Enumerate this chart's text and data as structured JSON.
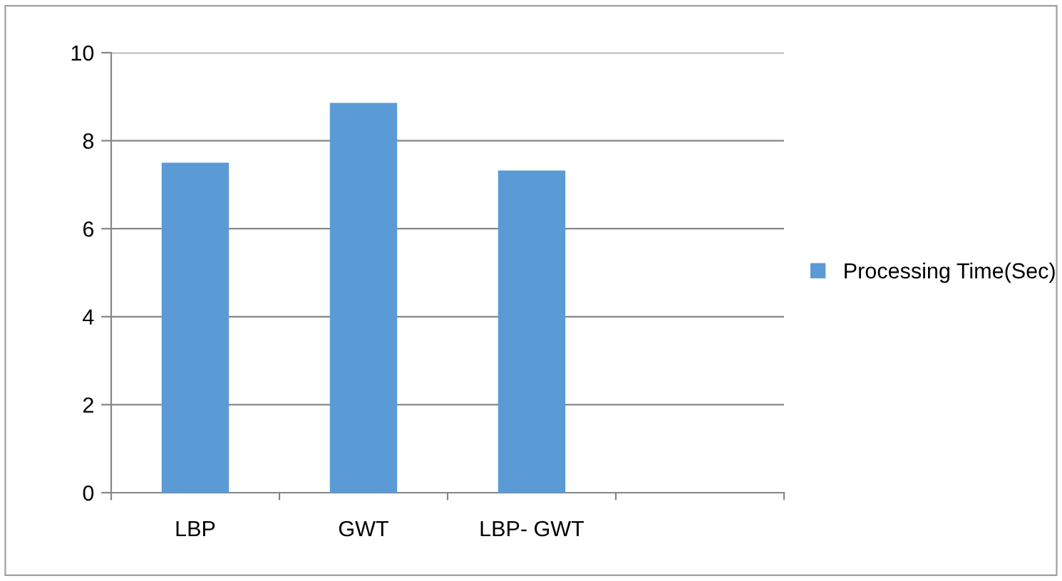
{
  "chart_data": {
    "type": "bar",
    "categories": [
      "LBP",
      "GWT",
      "LBP- GWT",
      null
    ],
    "series": [
      {
        "name": "Processing Time(Sec)",
        "color": "#5b9bd5",
        "values": [
          7.5,
          8.86,
          7.32,
          null
        ]
      }
    ],
    "ylim": [
      0,
      10
    ],
    "yticks": [
      0,
      2,
      4,
      6,
      8,
      10
    ],
    "grid": "y",
    "legend": "right"
  }
}
